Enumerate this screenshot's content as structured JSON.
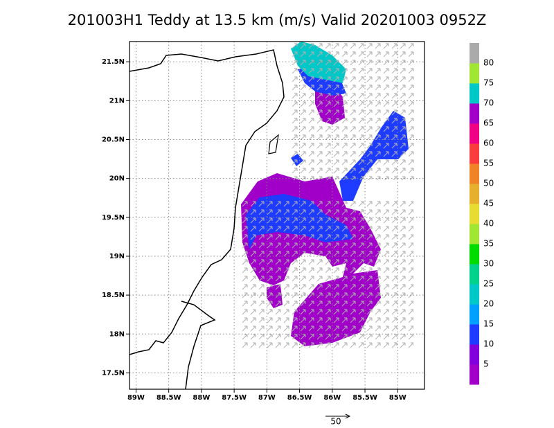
{
  "chart_data": {
    "type": "map",
    "title": "201003H1 Teddy at 13.5 km (m/s) Valid 20201003 0952Z",
    "xlim": [
      -89.1,
      -84.59
    ],
    "xticks": [
      {
        "value": -89,
        "label": "89W"
      },
      {
        "value": -88.5,
        "label": "88.5W"
      },
      {
        "value": -88,
        "label": "88W"
      },
      {
        "value": -87.5,
        "label": "87.5W"
      },
      {
        "value": -87,
        "label": "87W"
      },
      {
        "value": -86.5,
        "label": "86.5W"
      },
      {
        "value": -86,
        "label": "86W"
      },
      {
        "value": -85.5,
        "label": "85.5W"
      },
      {
        "value": -85,
        "label": "85W"
      }
    ],
    "ylim": [
      17.29,
      21.76
    ],
    "yticks": [
      {
        "value": 17.5,
        "label": "17.5N"
      },
      {
        "value": 18,
        "label": "18N"
      },
      {
        "value": 18.5,
        "label": "18.5N"
      },
      {
        "value": 19,
        "label": "19N"
      },
      {
        "value": 19.5,
        "label": "19.5N"
      },
      {
        "value": 20,
        "label": "20N"
      },
      {
        "value": 20.5,
        "label": "20.5N"
      },
      {
        "value": 21,
        "label": "21N"
      },
      {
        "value": 21.5,
        "label": "21.5N"
      }
    ],
    "grid": true,
    "colorbar": {
      "levels": [
        5,
        10,
        15,
        20,
        25,
        30,
        35,
        40,
        45,
        50,
        55,
        60,
        65,
        70,
        75,
        80
      ],
      "colors": [
        "#a000c8",
        "#8200dc",
        "#1e3cff",
        "#00a0ff",
        "#00c8c8",
        "#00d28c",
        "#00dc00",
        "#a0e632",
        "#e6dc32",
        "#e6af2d",
        "#f08228",
        "#fa3c3c",
        "#f00082",
        "#a000c8",
        "#00c8c8",
        "#a0e632",
        "#aaaaaa"
      ]
    },
    "reference_vector": 50
  }
}
